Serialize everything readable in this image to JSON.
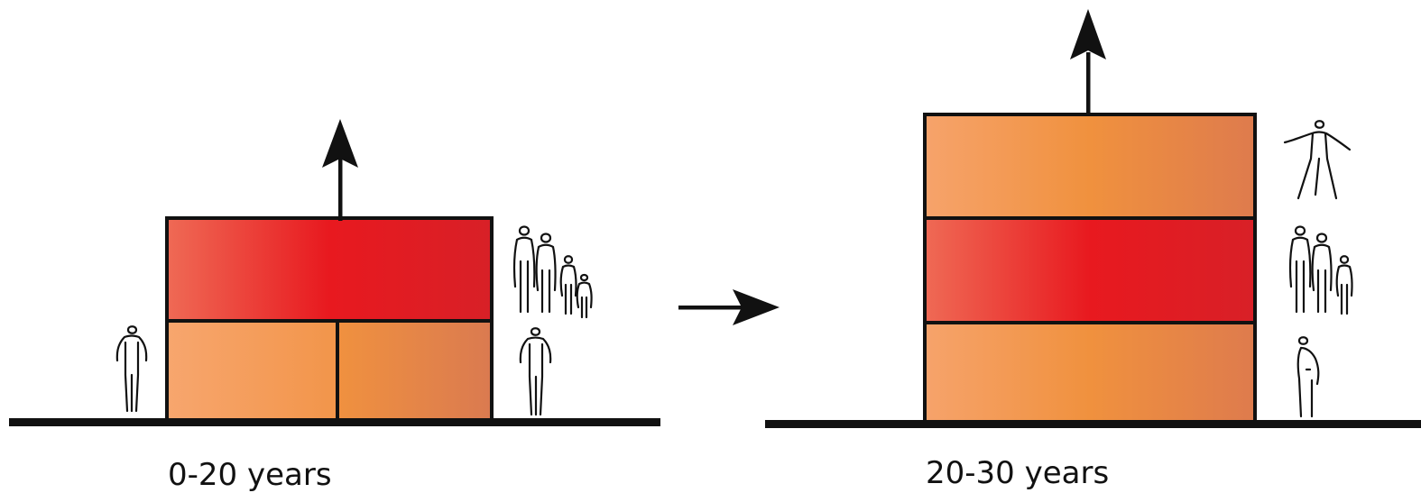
{
  "stages": [
    {
      "label": "0-20 years",
      "floors": 2,
      "people_groups": [
        "single-person",
        "family",
        "single-person"
      ]
    },
    {
      "label": "20-30 years",
      "floors": 3,
      "people_groups": [
        "single-person",
        "family",
        "single-person"
      ]
    }
  ],
  "transition": "arrow-right",
  "growth_indicator": "arrow-up",
  "colors": {
    "ground": "#111111",
    "outline": "#111111",
    "red_floor_light": "#ef6a55",
    "red_floor_core": "#e8191f",
    "red_floor_dark": "#d82027",
    "orange_floor_light": "#f6a36b",
    "orange_floor_core": "#f0903f",
    "orange_floor_dark": "#de7a4c"
  }
}
